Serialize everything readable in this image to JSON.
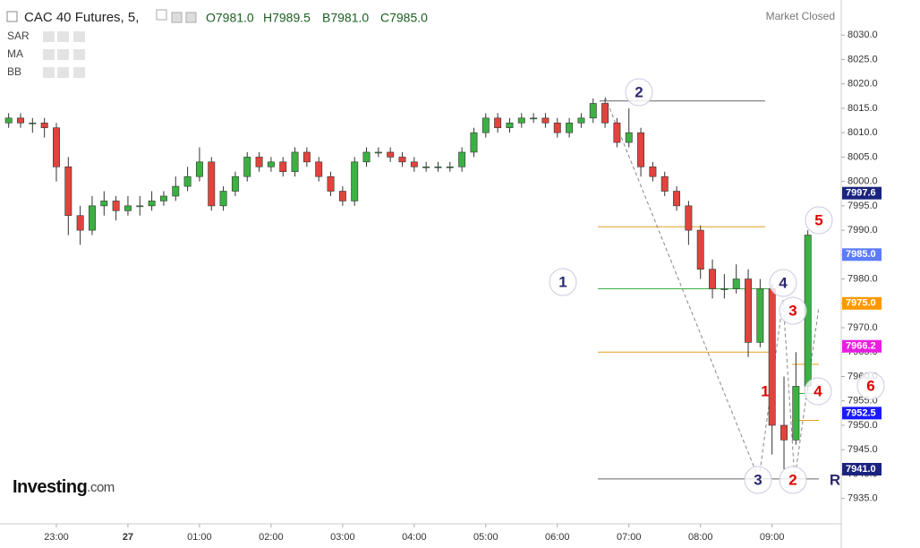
{
  "chart_data": {
    "type": "candlestick",
    "title": "CAC 40 Futures, 5,",
    "ohlc_labels": [
      "O7981.0",
      "H7989.5",
      "B7981.0",
      "C7985.0"
    ],
    "status": "Market Closed",
    "indicators": [
      "SAR",
      "MA",
      "BB"
    ],
    "brand": "Investing",
    "brand_suffix": ".com",
    "up_color": "#3cb043",
    "down_color": "#e0443c",
    "open": [
      8012,
      8013,
      8012,
      8012,
      8011,
      8003,
      7993,
      7990,
      7995,
      7996,
      7994,
      7995,
      7995,
      7996,
      7997,
      7999,
      8001,
      8004,
      7995,
      7998,
      8001,
      8005,
      8003,
      8004,
      8002,
      8006,
      8004,
      8001,
      7998,
      7996,
      8004,
      8006,
      8006,
      8005,
      8004,
      8003,
      8003,
      8003,
      8003,
      8006,
      8010,
      8013,
      8011,
      8012,
      8013,
      8013,
      8012,
      8010,
      8012,
      8013,
      8016,
      8012,
      8008,
      8010,
      8003,
      8001,
      7998,
      7995,
      7990,
      7982,
      7978,
      7978,
      7980,
      7967,
      7978,
      7950,
      7947,
      7958
    ],
    "high": [
      8014,
      8014,
      8013,
      8013,
      8012,
      8005,
      7995,
      7997,
      7998,
      7997,
      7997,
      7997,
      7998,
      7998,
      8001,
      8003,
      8007,
      8005,
      7999,
      8002,
      8006,
      8006,
      8005,
      8005,
      8007,
      8007,
      8005,
      8002,
      7999,
      8005,
      8007,
      8007,
      8007,
      8006,
      8005,
      8004,
      8004,
      8004,
      8007,
      8011,
      8014,
      8014,
      8013,
      8014,
      8014,
      8014,
      8013,
      8013,
      8014,
      8017,
      8017,
      8013,
      8015,
      8011,
      8004,
      8002,
      7999,
      7996,
      7991,
      7984,
      7981,
      7983,
      7982,
      7980,
      7979,
      7960,
      7965,
      7990
    ],
    "low": [
      8011,
      8011,
      8010,
      8009,
      8000,
      7989,
      7987,
      7989,
      7993,
      7992,
      7993,
      7993,
      7994,
      7995,
      7996,
      7998,
      8000,
      7994,
      7994,
      7997,
      8000,
      8002,
      8002,
      8001,
      8001,
      8003,
      8000,
      7997,
      7995,
      7995,
      8003,
      8005,
      8004,
      8003,
      8002,
      8002,
      8002,
      8002,
      8002,
      8005,
      8009,
      8010,
      8010,
      8011,
      8012,
      8011,
      8009,
      8009,
      8011,
      8012,
      8011,
      8007,
      8007,
      8001,
      8000,
      7997,
      7994,
      7987,
      7980,
      7976,
      7976,
      7977,
      7964,
      7966,
      7944,
      7941,
      7946,
      7957
    ],
    "close": [
      8013,
      8012,
      8012,
      8011,
      8003,
      7993,
      7990,
      7995,
      7996,
      7994,
      7995,
      7995,
      7996,
      7997,
      7999,
      8001,
      8004,
      7995,
      7998,
      8001,
      8005,
      8003,
      8004,
      8002,
      8006,
      8004,
      8001,
      7998,
      7996,
      8004,
      8006,
      8006,
      8005,
      8004,
      8003,
      8003,
      8003,
      8003,
      8006,
      8010,
      8013,
      8011,
      8012,
      8013,
      8013,
      8012,
      8010,
      8012,
      8013,
      8016,
      8012,
      8008,
      8010,
      8003,
      8001,
      7998,
      7995,
      7990,
      7982,
      7978,
      7978,
      7980,
      7967,
      7978,
      7950,
      7947,
      7958,
      7989
    ],
    "xlim": [
      -0.725,
      69.8
    ],
    "xticks": [
      {
        "value": 4,
        "label": "23:00"
      },
      {
        "value": 10,
        "label": "27"
      },
      {
        "value": 16,
        "label": "01:00"
      },
      {
        "value": 22,
        "label": "02:00"
      },
      {
        "value": 28,
        "label": "03:00"
      },
      {
        "value": 34,
        "label": "04:00"
      },
      {
        "value": 40,
        "label": "05:00"
      },
      {
        "value": 46,
        "label": "06:00"
      },
      {
        "value": 52,
        "label": "07:00"
      },
      {
        "value": 58,
        "label": "08:00"
      },
      {
        "value": 64,
        "label": "09:00"
      }
    ],
    "ylim": [
      7932,
      8035
    ],
    "yticks": [
      {
        "value": 7935,
        "label": "7935.0"
      },
      {
        "value": 7940,
        "label": "7940.0"
      },
      {
        "value": 7945,
        "label": "7945.0"
      },
      {
        "value": 7950,
        "label": "7950.0"
      },
      {
        "value": 7955,
        "label": "7955.0"
      },
      {
        "value": 7960,
        "label": "7960.0"
      },
      {
        "value": 7965,
        "label": "7965.0"
      },
      {
        "value": 7970,
        "label": "7970.0"
      },
      {
        "value": 7975,
        "label": "7975.0"
      },
      {
        "value": 7980,
        "label": "7980.0"
      },
      {
        "value": 7985,
        "label": "7985.0"
      },
      {
        "value": 7990,
        "label": "7990.0"
      },
      {
        "value": 7995,
        "label": "7995.0"
      },
      {
        "value": 8000,
        "label": "8000.0"
      },
      {
        "value": 8005,
        "label": "8005.0"
      },
      {
        "value": 8010,
        "label": "8010.0"
      },
      {
        "value": 8015,
        "label": "8015.0"
      },
      {
        "value": 8020,
        "label": "8020.0"
      },
      {
        "value": 8025,
        "label": "8025.0"
      },
      {
        "value": 8030,
        "label": "8030.0"
      }
    ],
    "price_tags": [
      {
        "value": 7997.6,
        "label": "7997.6",
        "color": "#1a237e"
      },
      {
        "value": 7985,
        "label": "7985.0",
        "color": "#5c7cfa"
      },
      {
        "value": 7975,
        "label": "7975.0",
        "color": "#ff9800"
      },
      {
        "value": 7966.2,
        "label": "7966.2",
        "color": "#e91ee0"
      },
      {
        "value": 7952.5,
        "label": "7952.5",
        "color": "#1a1aff"
      },
      {
        "value": 7941,
        "label": "7941.0",
        "color": "#1a237e"
      }
    ],
    "levels": [
      {
        "value": 8016.5,
        "color": "#666"
      },
      {
        "value": 7990.7,
        "color": "#e6a020"
      },
      {
        "value": 7978,
        "color": "#3cb043"
      },
      {
        "value": 7965,
        "color": "#e6a020"
      },
      {
        "value": 7962.5,
        "color": "#e6a020"
      },
      {
        "value": 7956.5,
        "color": "#3cb043"
      },
      {
        "value": 7951,
        "color": "#e6a020"
      },
      {
        "value": 7939,
        "color": "#666"
      }
    ],
    "annotations": [
      {
        "text": "1",
        "color": "#2a2a6e"
      },
      {
        "text": "2",
        "color": "#2a2a6e"
      },
      {
        "text": "3",
        "color": "#2a2a6e"
      },
      {
        "text": "4",
        "color": "#2a2a6e"
      },
      {
        "text": "5",
        "color": "#e00000"
      },
      {
        "text": "1",
        "color": "#e00000"
      },
      {
        "text": "2",
        "color": "#e00000"
      },
      {
        "text": "3",
        "color": "#e00000"
      },
      {
        "text": "4",
        "color": "#e00000"
      },
      {
        "text": "6",
        "color": "#e00000"
      },
      {
        "text": "R",
        "color": "#2a2a6e"
      }
    ]
  }
}
